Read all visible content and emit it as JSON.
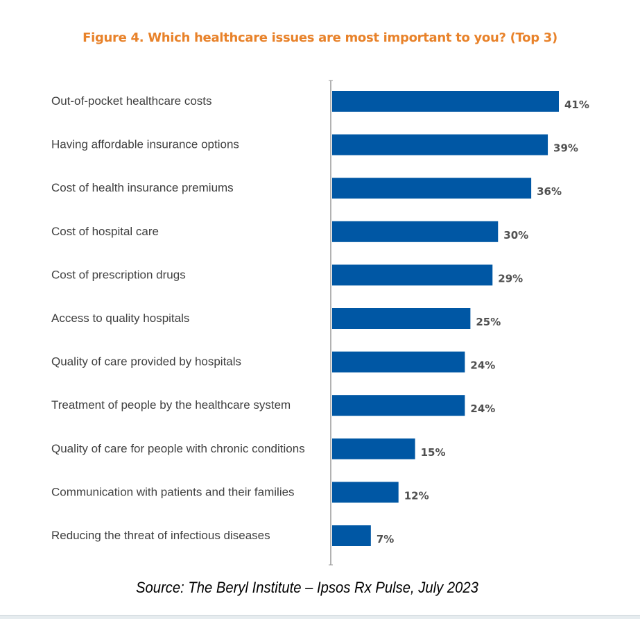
{
  "chart_data": {
    "type": "bar",
    "orientation": "horizontal",
    "title": "Figure 4. Which healthcare issues are most important to you? (Top 3)",
    "categories": [
      "Out-of-pocket healthcare costs",
      "Having affordable insurance options",
      "Cost of health insurance premiums",
      "Cost of hospital care",
      "Cost of prescription drugs",
      "Access to quality hospitals",
      "Quality of care provided by hospitals",
      "Treatment of people by the healthcare system",
      "Quality of care for people with chronic conditions",
      "Communication with patients and their families",
      "Reducing the threat of infectious diseases"
    ],
    "values": [
      41,
      39,
      36,
      30,
      29,
      25,
      24,
      24,
      15,
      12,
      7
    ],
    "data_labels": [
      "41%",
      "39%",
      "36%",
      "30%",
      "29%",
      "25%",
      "24%",
      "24%",
      "15%",
      "12%",
      "7%"
    ],
    "unit": "%",
    "xlim": [
      0,
      41
    ],
    "grid": false,
    "colors": {
      "bar": "#0057A4",
      "title": "#E8822A",
      "label": "#404040",
      "value": "#505050",
      "axis": "#999999"
    }
  },
  "source": "Source: The Beryl Institute – Ipsos Rx Pulse, July 2023"
}
